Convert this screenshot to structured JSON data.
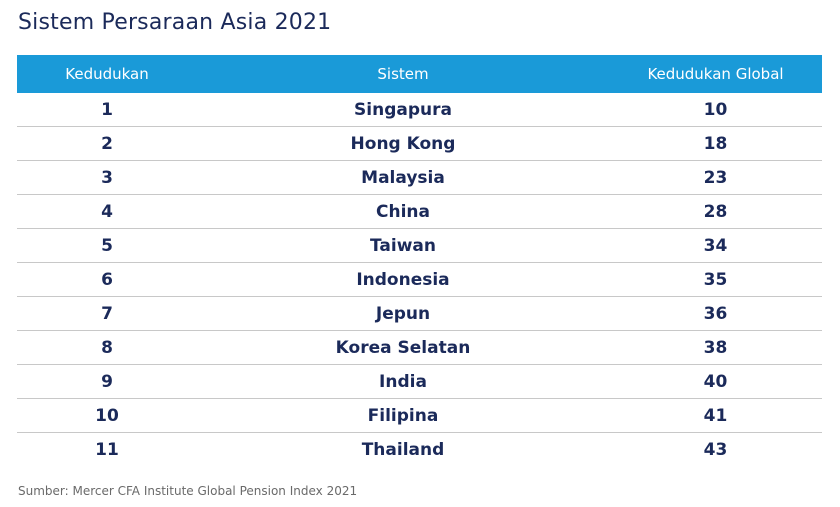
{
  "header": {
    "title": "Sistem Persaraan Asia 2021"
  },
  "table": {
    "columns": [
      "Kedudukan",
      "Sistem",
      "Kedudukan Global"
    ],
    "rows": [
      [
        1,
        "Singapura",
        10
      ],
      [
        2,
        "Hong Kong",
        18
      ],
      [
        3,
        "Malaysia",
        23
      ],
      [
        4,
        "China",
        28
      ],
      [
        5,
        "Taiwan",
        34
      ],
      [
        6,
        "Indonesia",
        35
      ],
      [
        7,
        "Jepun",
        36
      ],
      [
        8,
        "Korea Selatan",
        38
      ],
      [
        9,
        "India",
        40
      ],
      [
        10,
        "Filipina",
        41
      ],
      [
        11,
        "Thailand",
        43
      ]
    ]
  },
  "footer": {
    "source": "Sumber: Mercer CFA Institute Global Pension Index 2021"
  }
}
